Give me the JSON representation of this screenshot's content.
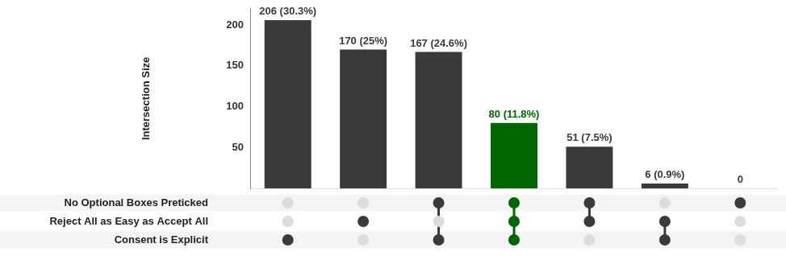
{
  "chart_data": {
    "type": "upset",
    "y_label": "Intersection Size",
    "categories": [
      null,
      null,
      null,
      null,
      null,
      null,
      null
    ],
    "values": [
      206,
      170,
      167,
      80,
      51,
      6,
      0
    ],
    "value_labels": [
      "206 (30.3%)",
      "170 (25%)",
      "167 (24.6%)",
      "80 (11.8%)",
      "51 (7.5%)",
      "6 (0.9%)",
      "0"
    ],
    "colors": [
      "#3a3a3a",
      "#3a3a3a",
      "#3a3a3a",
      "#006400",
      "#3a3a3a",
      "#3a3a3a",
      "#3a3a3a"
    ],
    "sets": [
      "No Optional Boxes Preticked",
      "Reject All as Easy as Accept All",
      "Consent is Explicit"
    ],
    "memberships": [
      [
        false,
        false,
        true
      ],
      [
        false,
        true,
        false
      ],
      [
        true,
        false,
        true
      ],
      [
        true,
        true,
        true
      ],
      [
        true,
        true,
        false
      ],
      [
        false,
        true,
        true
      ],
      [
        true,
        false,
        false
      ]
    ],
    "ylim": [
      0,
      220
    ],
    "yticks": [
      50,
      100,
      150,
      200
    ],
    "grid": false,
    "data_labels": true,
    "tick_labels": "y"
  }
}
